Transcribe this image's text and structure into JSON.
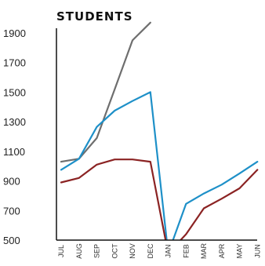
{
  "chart_data": {
    "type": "line",
    "title": "STUDENTS",
    "xlabel": "",
    "ylabel": "",
    "categories": [
      "JUL",
      "AUG",
      "SEP",
      "OCT",
      "NOV",
      "DEC",
      "JAN",
      "FEB",
      "MAR",
      "APR",
      "MAY",
      "JUN"
    ],
    "yticks": [
      500,
      700,
      900,
      1100,
      1300,
      1500,
      1700,
      1900
    ],
    "ylim": [
      500,
      2000
    ],
    "grid": false,
    "legend": "none",
    "series": [
      {
        "color": "#6e6e6e",
        "values": [
          1030,
          1050,
          1190,
          1520,
          1850,
          1970,
          null,
          null,
          null,
          null,
          null,
          null
        ]
      },
      {
        "color": "#1e90c8",
        "values": [
          975,
          1050,
          1265,
          1375,
          1440,
          1500,
          410,
          745,
          815,
          875,
          950,
          1030
        ]
      },
      {
        "color": "#8b2323",
        "values": [
          890,
          920,
          1010,
          1045,
          1045,
          1030,
          410,
          540,
          715,
          780,
          850,
          975
        ]
      }
    ]
  }
}
